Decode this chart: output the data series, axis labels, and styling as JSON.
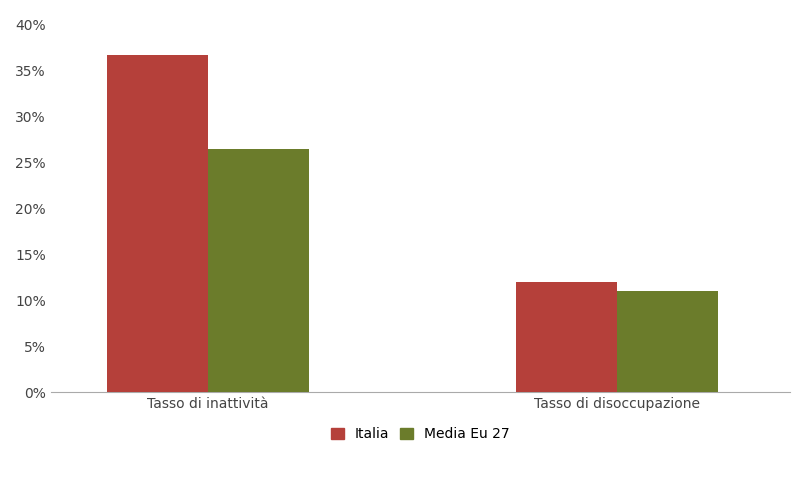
{
  "categories": [
    "Tasso di inattività",
    "Tasso di disoccupazione"
  ],
  "italia_values": [
    0.366,
    0.12
  ],
  "eu27_values": [
    0.264,
    0.11
  ],
  "italia_color": "#b5403a",
  "eu27_color": "#6b7c2b",
  "legend_italia": "Italia",
  "legend_eu27": "Media Eu 27",
  "ylim": [
    0,
    0.41
  ],
  "yticks": [
    0.0,
    0.05,
    0.1,
    0.15,
    0.2,
    0.25,
    0.3,
    0.35,
    0.4
  ],
  "bar_width": 0.32,
  "background_color": "#ffffff",
  "font_color": "#444444",
  "tick_fontsize": 10,
  "label_fontsize": 10,
  "legend_fontsize": 10,
  "group_centers": [
    0.55,
    1.85
  ]
}
